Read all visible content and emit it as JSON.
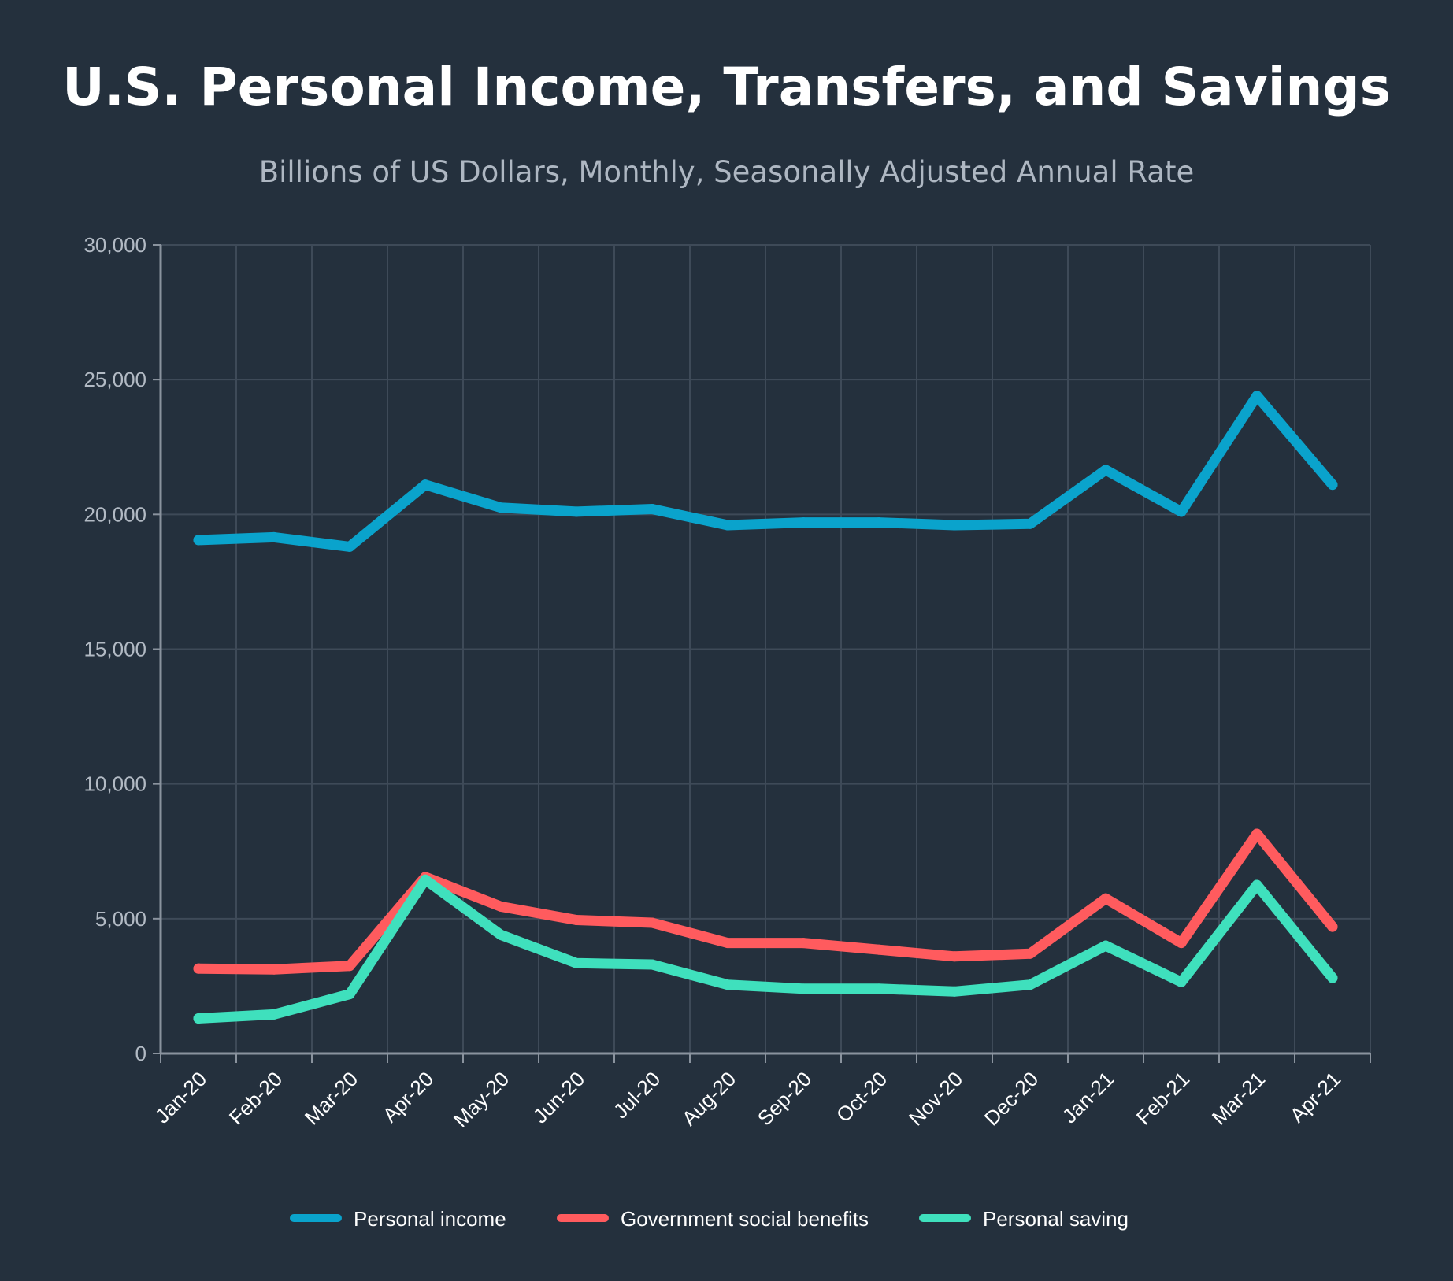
{
  "chart_data": {
    "type": "line",
    "title": "U.S. Personal Income, Transfers, and Savings",
    "subtitle": "Billions of US Dollars, Monthly, Seasonally Adjusted Annual Rate",
    "xlabel": "",
    "ylabel": "",
    "ylim": [
      0,
      30000
    ],
    "yticks": [
      {
        "value": 0,
        "label": "0"
      },
      {
        "value": 5000,
        "label": "5,000"
      },
      {
        "value": 10000,
        "label": "10,000"
      },
      {
        "value": 15000,
        "label": "15,000"
      },
      {
        "value": 20000,
        "label": "20,000"
      },
      {
        "value": 25000,
        "label": "25,000"
      },
      {
        "value": 30000,
        "label": "30,000"
      }
    ],
    "grid": true,
    "legend_position": "bottom",
    "categories": [
      "Jan-20",
      "Feb-20",
      "Mar-20",
      "Apr-20",
      "May-20",
      "Jun-20",
      "Jul-20",
      "Aug-20",
      "Sep-20",
      "Oct-20",
      "Nov-20",
      "Dec-20",
      "Jan-21",
      "Feb-21",
      "Mar-21",
      "Apr-21"
    ],
    "series": [
      {
        "name": "Personal income",
        "color": "#0aa3cc",
        "values": [
          19050,
          19150,
          18800,
          21100,
          20250,
          20100,
          20200,
          19600,
          19700,
          19700,
          19600,
          19650,
          21650,
          20100,
          24400,
          21100
        ]
      },
      {
        "name": "Government social benefits",
        "color": "#ff5b5e",
        "values": [
          3150,
          3120,
          3250,
          6550,
          5450,
          4950,
          4850,
          4100,
          4100,
          3850,
          3600,
          3700,
          5750,
          4100,
          8150,
          4700
        ]
      },
      {
        "name": "Personal saving",
        "color": "#3fe0bd",
        "values": [
          1300,
          1450,
          2200,
          6450,
          4400,
          3350,
          3300,
          2550,
          2400,
          2400,
          2300,
          2550,
          4000,
          2650,
          6250,
          2800
        ]
      }
    ]
  }
}
